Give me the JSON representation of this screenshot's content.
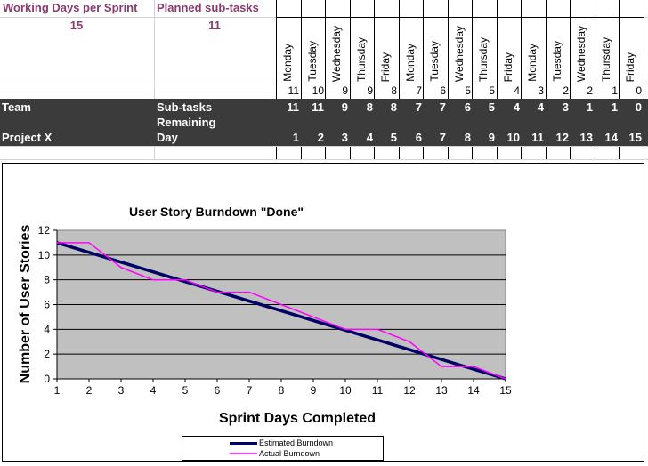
{
  "header": {
    "working_days_label": "Working Days per Sprint",
    "working_days_value": "15",
    "planned_label": "Planned sub-tasks",
    "planned_value": "11"
  },
  "days": {
    "names": [
      "Monday",
      "Tuesday",
      "Wednesday",
      "Thursday",
      "Friday",
      "Monday",
      "Tuesday",
      "Wednesday",
      "Thursday",
      "Friday",
      "Monday",
      "Tuesday",
      "Wednesday",
      "Thursday",
      "Friday"
    ],
    "top_values": [
      "11",
      "10",
      "9",
      "9",
      "8",
      "7",
      "6",
      "5",
      "5",
      "4",
      "3",
      "2",
      "2",
      "1",
      "0"
    ]
  },
  "rows": {
    "team_label": "Team",
    "subtasks_label_1": "Sub-tasks",
    "subtasks_label_2": "Remaining",
    "subtasks_values": [
      "11",
      "11",
      "9",
      "8",
      "8",
      "7",
      "7",
      "6",
      "5",
      "4",
      "4",
      "3",
      "1",
      "1",
      "0"
    ],
    "project_label": "Project X",
    "day_label": "Day",
    "day_values": [
      "1",
      "2",
      "3",
      "4",
      "5",
      "6",
      "7",
      "8",
      "9",
      "10",
      "11",
      "12",
      "13",
      "14",
      "15"
    ]
  },
  "colors": {
    "estimated": "#000066",
    "actual": "#ff00ff",
    "plot_bg": "#c0c0c0",
    "header_text": "#8b3a6e",
    "dark_row": "#3b3b3b"
  },
  "chart_data": {
    "type": "line",
    "title": "User Story Burndown \"Done\"",
    "xlabel": "Sprint Days Completed",
    "ylabel": "Number of User Stories",
    "x": [
      1,
      2,
      3,
      4,
      5,
      6,
      7,
      8,
      9,
      10,
      11,
      12,
      13,
      14,
      15
    ],
    "xlim": [
      1,
      15
    ],
    "ylim": [
      0,
      12
    ],
    "yticks": [
      0,
      2,
      4,
      6,
      8,
      10,
      12
    ],
    "grid": true,
    "legend_position": "bottom",
    "series": [
      {
        "name": "Estimated Burndown",
        "values": [
          11,
          10.214,
          9.429,
          8.643,
          7.857,
          7.071,
          6.286,
          5.5,
          4.714,
          3.929,
          3.143,
          2.357,
          1.571,
          0.786,
          0
        ]
      },
      {
        "name": "Actual Burndown",
        "values": [
          11,
          11,
          9,
          8,
          8,
          7,
          7,
          6,
          5,
          4,
          4,
          3,
          1,
          1,
          0
        ]
      }
    ]
  }
}
